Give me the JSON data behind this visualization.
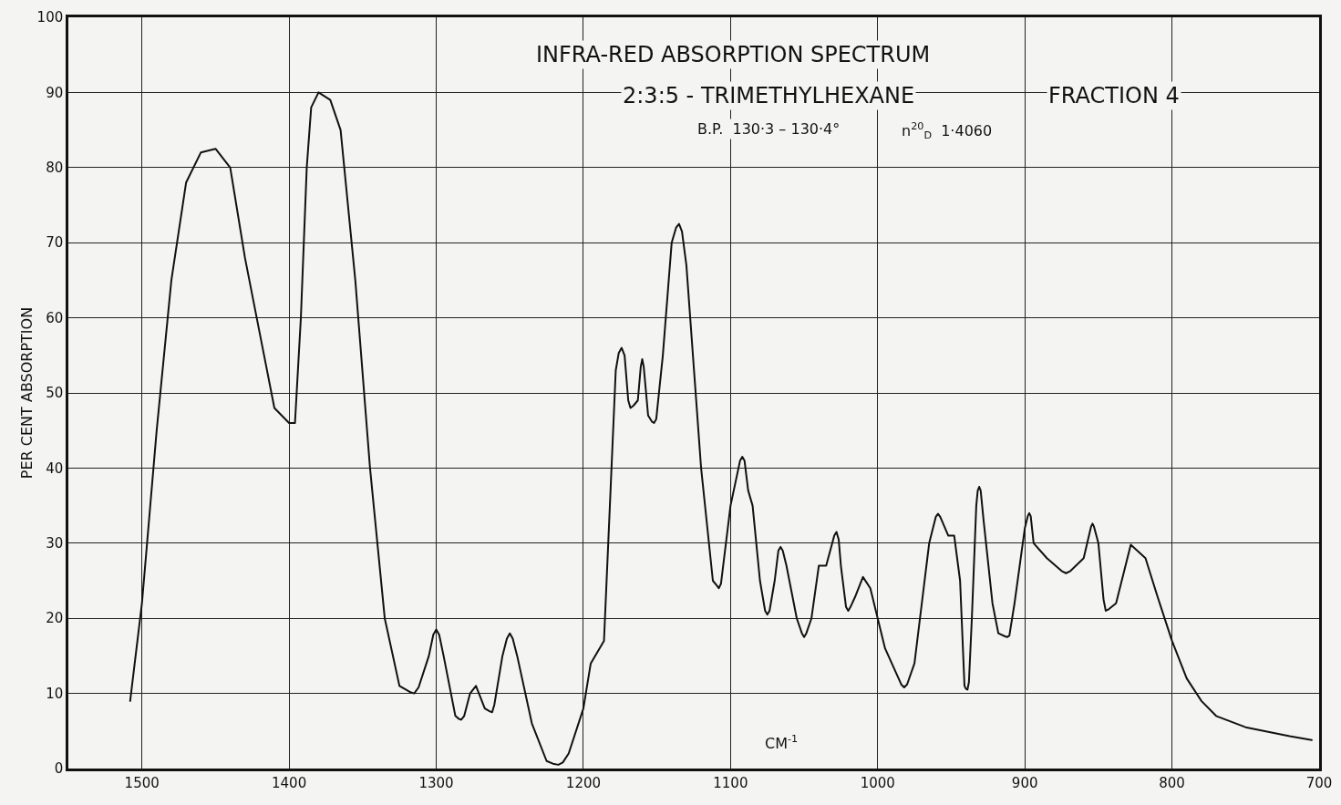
{
  "chart_data": {
    "type": "line",
    "title": "INFRA-RED ABSORPTION SPECTRUM",
    "subtitle": "2:3:5 - TRIMETHYLHEXANE",
    "xlabel": "CM$^{-1}$",
    "ylabel": "PER CENT ABSORPTION",
    "annotations": [
      "FRACTION 4",
      "B.P.  130·3 – 130·4°",
      "n$^{20}$$_{D}$  1·4060"
    ],
    "x": [
      1508,
      1500,
      1490,
      1480,
      1470,
      1460,
      1450,
      1440,
      1430,
      1420,
      1410,
      1400,
      1396,
      1392,
      1388,
      1385,
      1380,
      1372,
      1365,
      1355,
      1345,
      1335,
      1325,
      1318,
      1315,
      1312,
      1305,
      1302,
      1300,
      1298,
      1295,
      1287,
      1284.5,
      1283,
      1281,
      1277,
      1273,
      1267,
      1263.5,
      1262,
      1260.5,
      1255,
      1252,
      1250,
      1248,
      1245,
      1235,
      1225,
      1220,
      1217,
      1214,
      1210,
      1200,
      1195,
      1189,
      1186,
      1182,
      1178,
      1176,
      1174,
      1172,
      1169.5,
      1168,
      1166,
      1163,
      1161,
      1160,
      1159,
      1156,
      1153.5,
      1152,
      1150.5,
      1146,
      1140,
      1137,
      1135,
      1133,
      1130,
      1120,
      1112,
      1109.5,
      1108,
      1106.5,
      1100,
      1093.5,
      1092,
      1090.5,
      1088,
      1085,
      1080,
      1076.5,
      1075,
      1073.5,
      1070,
      1067.5,
      1066,
      1064.5,
      1062,
      1055,
      1051.5,
      1050,
      1048.5,
      1045,
      1040,
      1035,
      1029.5,
      1028,
      1026.5,
      1025,
      1021.5,
      1020,
      1018.5,
      1015,
      1010,
      1005,
      995,
      984,
      982,
      980,
      975,
      965,
      960.5,
      959,
      957.5,
      952,
      948,
      944,
      941,
      940,
      939,
      938,
      936,
      933,
      932,
      931,
      930,
      928,
      922,
      918,
      913.5,
      912,
      910.5,
      907,
      900,
      898,
      897,
      896,
      894,
      885,
      875,
      872,
      869,
      860,
      855,
      854,
      853,
      850,
      846.5,
      845,
      843,
      838,
      828,
      818,
      810,
      800,
      790,
      780,
      770,
      750,
      720,
      705
    ],
    "series": [
      {
        "color": "#111111",
        "values": [
          9,
          22,
          45,
          65,
          78,
          82,
          82.5,
          80,
          68,
          58,
          48,
          46,
          46,
          60,
          80,
          88,
          90,
          89,
          85,
          65,
          40,
          20,
          11,
          10.2,
          10,
          10.8,
          15,
          17.8,
          18.5,
          17.8,
          15,
          7,
          6.6,
          6.5,
          7,
          10,
          11,
          8,
          7.6,
          7.5,
          8.5,
          15,
          17.3,
          18,
          17.3,
          15,
          6,
          1,
          0.6,
          0.5,
          0.8,
          2,
          8,
          14,
          16,
          17,
          35,
          53,
          55.3,
          56,
          55,
          49,
          48,
          48.3,
          49,
          53.5,
          54.5,
          53.5,
          47,
          46.2,
          46,
          46.5,
          55,
          70,
          72,
          72.5,
          71.5,
          67,
          40,
          25,
          24.4,
          24,
          24.6,
          35,
          41,
          41.5,
          41,
          37,
          35,
          25,
          21,
          20.5,
          21,
          25,
          29,
          29.5,
          29,
          27,
          20,
          18,
          17.5,
          18,
          20,
          27,
          27,
          31,
          31.5,
          30.5,
          27,
          21.5,
          21,
          21.5,
          23,
          25.5,
          24,
          16,
          11.2,
          10.8,
          11.2,
          14,
          30,
          33.5,
          33.9,
          33.5,
          31,
          31,
          25,
          11,
          10.6,
          10.5,
          11.5,
          20,
          35,
          37,
          37.5,
          37,
          33,
          22,
          18,
          17.6,
          17.5,
          17.7,
          22,
          32,
          33.6,
          34,
          33.6,
          30,
          28,
          26.3,
          26,
          26.3,
          28,
          32.2,
          32.6,
          32.2,
          30,
          22.5,
          21,
          21.2,
          22,
          29.8,
          28,
          23,
          17,
          12,
          9,
          7,
          5.5,
          4.3,
          3.8
        ]
      }
    ],
    "xlim": [
      1550,
      700
    ],
    "xticks": [
      1500,
      1400,
      1300,
      1200,
      1100,
      1000,
      900,
      800,
      700
    ],
    "ylim": [
      0,
      100
    ],
    "yticks": [
      0,
      10,
      20,
      30,
      40,
      50,
      60,
      70,
      80,
      90,
      100
    ],
    "grid": true,
    "marker": "none",
    "line_style": "solid"
  }
}
